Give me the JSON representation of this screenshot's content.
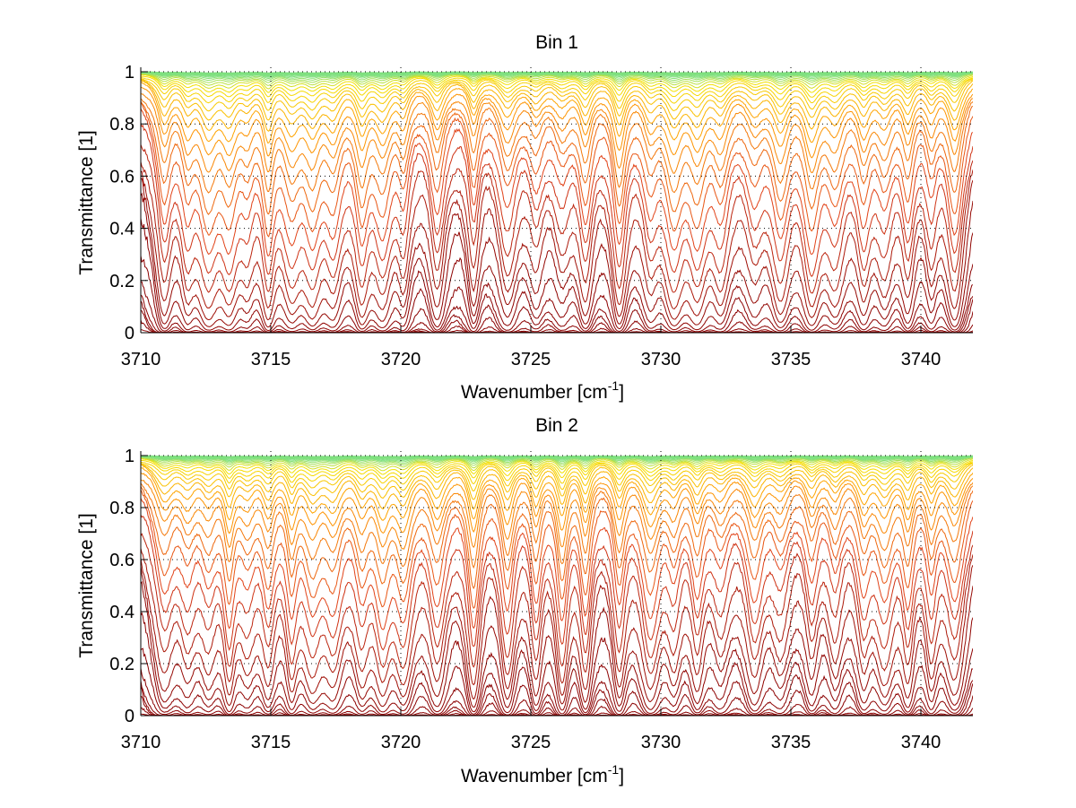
{
  "chart_data": [
    {
      "type": "line",
      "title": "Bin 1",
      "xlabel": "Wavenumber [cm",
      "xlabel_sup": "-1",
      "xlabel_end": "]",
      "ylabel": "Transmittance [1]",
      "xlim": [
        3710,
        3742
      ],
      "ylim": [
        0,
        1.02
      ],
      "grid": true,
      "xticks": [
        3710,
        3715,
        3720,
        3725,
        3730,
        3735,
        3740
      ],
      "yticks": [
        0,
        0.2,
        0.4,
        0.6,
        0.8,
        1
      ],
      "xtick_labels": [
        "3710",
        "3715",
        "3720",
        "3725",
        "3730",
        "3735",
        "3740"
      ],
      "ytick_labels": [
        "0",
        "0.2",
        "0.4",
        "0.6",
        "0.8",
        "1"
      ],
      "num_series": 40,
      "series_description": "family of transmittance spectra colored from dark red (low transmittance) through orange to yellow/green (near 1)",
      "absorption_lines_cm-1": [
        3710.9,
        3711.8,
        3712.6,
        3713.4,
        3714.1,
        3714.9,
        3715.8,
        3716.6,
        3717.4,
        3718.5,
        3719.3,
        3720.1,
        3721.4,
        3722.8,
        3724.1,
        3725.2,
        3726.2,
        3727.1,
        3728.4,
        3729.6,
        3730.5,
        3731.4,
        3732.3,
        3733.6,
        3734.6,
        3735.8,
        3736.7,
        3737.8,
        3738.6,
        3739.5,
        3740.4,
        3741.3
      ],
      "seed": 1
    },
    {
      "type": "line",
      "title": "Bin 2",
      "xlabel": "Wavenumber [cm",
      "xlabel_sup": "-1",
      "xlabel_end": "]",
      "ylabel": "Transmittance [1]",
      "xlim": [
        3710,
        3742
      ],
      "ylim": [
        0,
        1.02
      ],
      "grid": true,
      "xticks": [
        3710,
        3715,
        3720,
        3725,
        3730,
        3735,
        3740
      ],
      "yticks": [
        0,
        0.2,
        0.4,
        0.6,
        0.8,
        1
      ],
      "xtick_labels": [
        "3710",
        "3715",
        "3720",
        "3725",
        "3730",
        "3735",
        "3740"
      ],
      "ytick_labels": [
        "0",
        "0.2",
        "0.4",
        "0.6",
        "0.8",
        "1"
      ],
      "num_series": 40,
      "series_description": "family of transmittance spectra colored from dark red (low transmittance) through orange to yellow/green (near 1)",
      "absorption_lines_cm-1": [
        3710.9,
        3711.8,
        3712.6,
        3713.4,
        3714.1,
        3714.9,
        3715.8,
        3716.6,
        3717.4,
        3718.5,
        3719.3,
        3720.1,
        3721.4,
        3722.8,
        3724.1,
        3725.2,
        3726.2,
        3727.1,
        3728.4,
        3729.6,
        3730.5,
        3731.4,
        3732.3,
        3733.6,
        3734.6,
        3735.8,
        3736.7,
        3737.8,
        3738.6,
        3739.5,
        3740.4,
        3741.3
      ],
      "seed": 2
    }
  ],
  "colors": {
    "low": "#8b0000",
    "mid": "#e0401a",
    "high": "#ff9900",
    "top": "#f5e000",
    "cap": "#7fe07f",
    "axis": "#000000",
    "grid": "#000000"
  }
}
